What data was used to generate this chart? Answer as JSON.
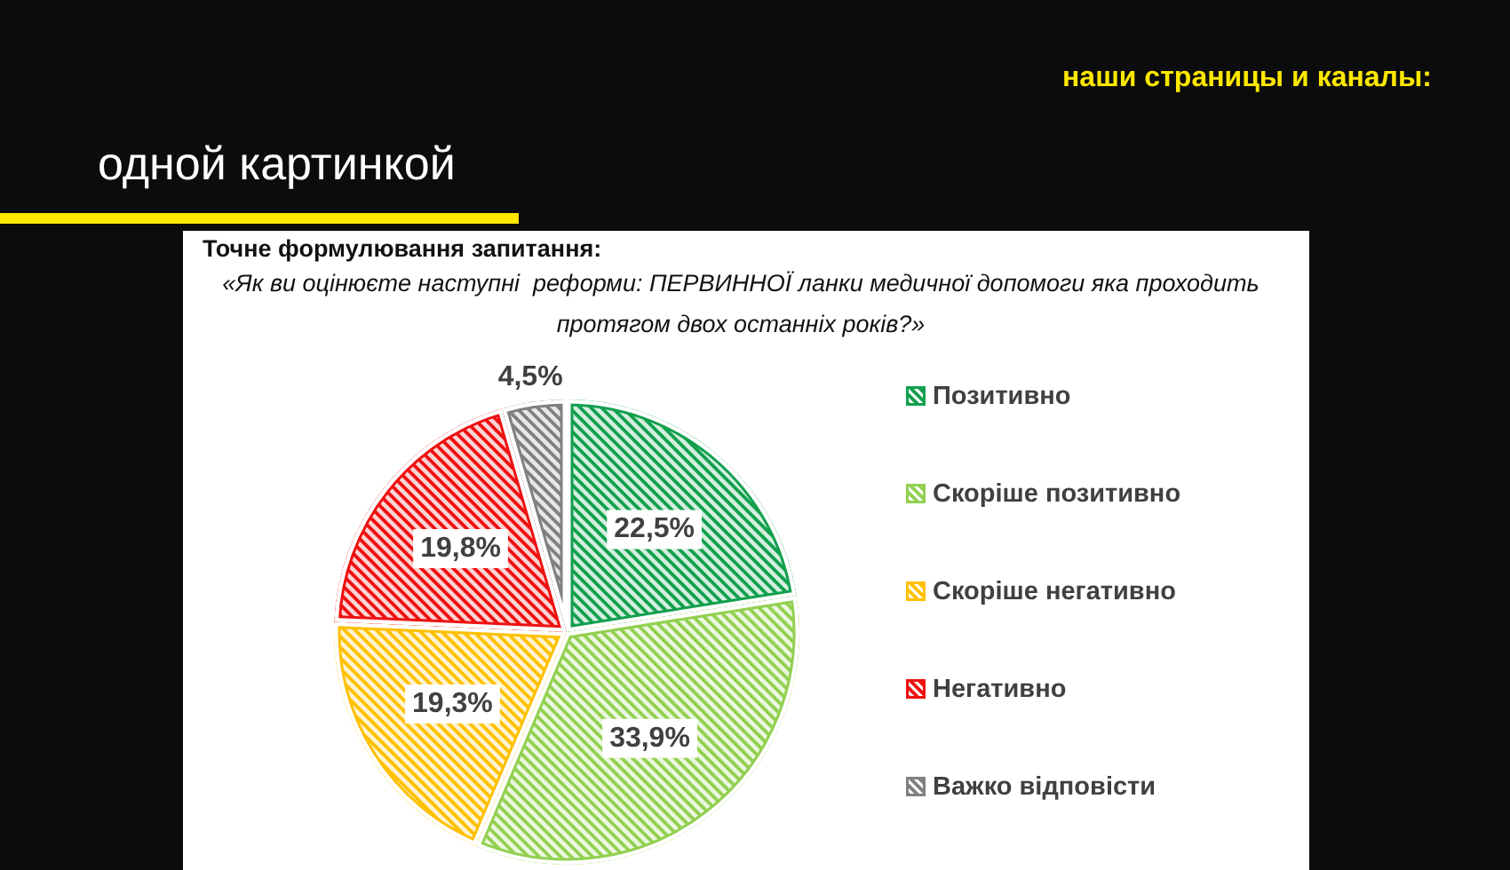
{
  "chart_data": {
    "type": "pie",
    "title": "Точне формулювання запитання:",
    "subtitle": "«Як ви оцінюєте наступні  реформи: ПЕРВИННОЇ ланки медичної допомоги яка проходить протягом двох останніх років?»",
    "categories": [
      "Позитивно",
      "Скоріше позитивно",
      "Скоріше негативно",
      "Негативно",
      "Важко відповісти"
    ],
    "values": [
      22.5,
      33.9,
      19.3,
      19.8,
      4.5
    ],
    "colors": [
      "#12a04e",
      "#92d050",
      "#ffc000",
      "#ee1111",
      "#808080"
    ],
    "value_labels": [
      "22,5%",
      "33,9%",
      "19,3%",
      "19,8%",
      "4,5%"
    ],
    "legend": "right",
    "annotations": [
      "одной картинкой",
      "наши страницы и каналы:"
    ]
  }
}
